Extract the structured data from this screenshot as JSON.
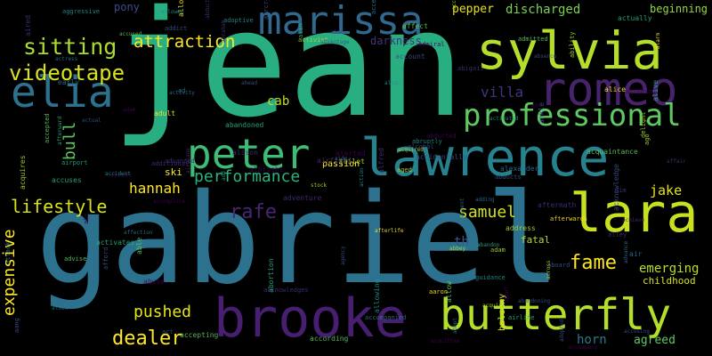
{
  "colors": {
    "background": "#000000",
    "palette": [
      "#440154",
      "#472d7b",
      "#3b528b",
      "#2c728e",
      "#21918c",
      "#28ae80",
      "#5ec962",
      "#addc30",
      "#fde725"
    ]
  },
  "words": {
    "jean": "jean",
    "gabriel": "gabriel",
    "marissa": "marissa",
    "sylvia": "sylvia",
    "romeo": "romeo",
    "elia": "elia",
    "professional": "professional",
    "lawrence": "lawrence",
    "peter": "peter",
    "lara": "lara",
    "brooke": "brooke",
    "butterfly": "butterfly",
    "sitting": "sitting",
    "videotape": "videotape",
    "attraction": "attraction",
    "lifestyle": "lifestyle",
    "hannah": "hannah",
    "performance": "performance",
    "samuel": "samuel",
    "jake": "jake",
    "rafe": "rafe",
    "fame": "fame",
    "emerging": "emerging",
    "pushed": "pushed",
    "dealer": "dealer",
    "horn": "horn",
    "agreed": "agreed",
    "villa": "villa",
    "pony": "pony",
    "darkness": "darkness",
    "cab": "cab",
    "th": "th",
    "fatal": "fatal",
    "discharged": "discharged",
    "pepper": "pepper",
    "beginning": "beginning",
    "childhood": "childhood",
    "passion": "passion",
    "ski": "ski",
    "bull": "bull",
    "expensive": "expensive",
    "balcony": "balcony"
  },
  "small_words": [
    "advanced",
    "acquired",
    "accuses",
    "alfred",
    "alarm",
    "adventure",
    "affair",
    "afford",
    "agreeing",
    "alcohol",
    "additional",
    "agreement",
    "aide",
    "ad",
    "abandoning",
    "address",
    "ahead",
    "accepting",
    "alan",
    "aged",
    "allows",
    "allow",
    "aired",
    "ability",
    "aiec",
    "absence",
    "afterward",
    "attack",
    "air",
    "alien",
    "abduction",
    "accompanied",
    "alley",
    "according",
    "guidance",
    "aaron",
    "afterlife",
    "toilet",
    "albright",
    "abigail",
    "aang",
    "affection",
    "acknowledge",
    "alison",
    "almost",
    "adoptive",
    "allowing",
    "aircraft",
    "acquires",
    "abducts",
    "delight",
    "early",
    "alive",
    "achieve",
    "account",
    "abandoned",
    "acknowledges",
    "abruptly",
    "advance",
    "activist",
    "addict",
    "afterwards",
    "accident",
    "align",
    "aggressive",
    "admiral",
    "adopt",
    "accompany",
    "actually",
    "abducted",
    "activates",
    "actual",
    "action",
    "actress",
    "abraham",
    "stock",
    "alexander",
    "accidentally",
    "alerted",
    "able",
    "accepted",
    "activated",
    "accept",
    "admitted",
    "adult",
    "acquaintance",
    "aftermath",
    "airport",
    "allowed",
    "act",
    "abortion",
    "agent",
    "adam",
    "accomplice",
    "advantage",
    "abandon",
    "abbey",
    "agency",
    "alice",
    "ankle",
    "accusing",
    "adopted",
    "adding",
    "aboard",
    "affect",
    "airfield",
    "activity",
    "airplane",
    "accused",
    "add",
    "ago",
    "aim",
    "abs",
    "acquire",
    "airline",
    "adam",
    "acquitted",
    "abe",
    "abuse",
    "across",
    "advise",
    "accepts"
  ]
}
